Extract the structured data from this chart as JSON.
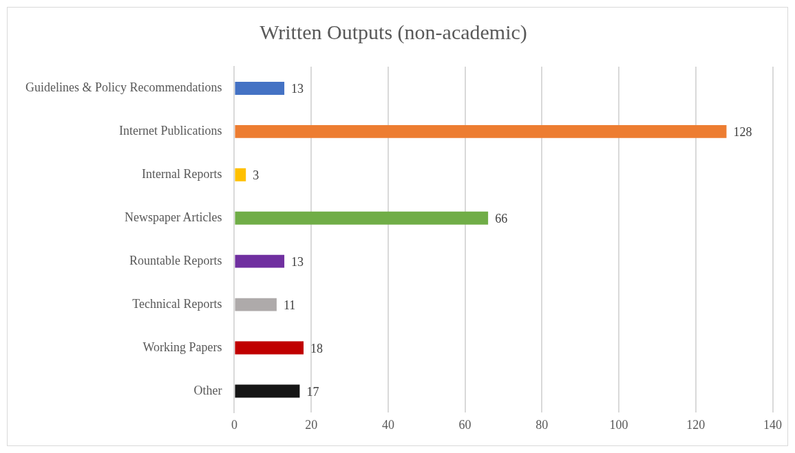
{
  "chart_data": {
    "type": "bar",
    "orientation": "horizontal",
    "title": "Written Outputs (non-academic)",
    "categories": [
      "Guidelines & Policy Recommendations",
      "Internet Publications",
      "Internal Reports",
      "Newspaper Articles",
      "Rountable Reports",
      "Technical Reports",
      "Working Papers",
      "Other"
    ],
    "values": [
      13,
      128,
      3,
      66,
      13,
      11,
      18,
      17
    ],
    "colors": [
      "#4472c4",
      "#ed7d31",
      "#ffc000",
      "#70ad47",
      "#7030a0",
      "#aeaaaa",
      "#c00000",
      "#161616"
    ],
    "xlim": [
      0,
      140
    ],
    "xticks": [
      0,
      20,
      40,
      60,
      80,
      100,
      120,
      140
    ],
    "grid": "x",
    "legend": false,
    "data_labels": true
  }
}
